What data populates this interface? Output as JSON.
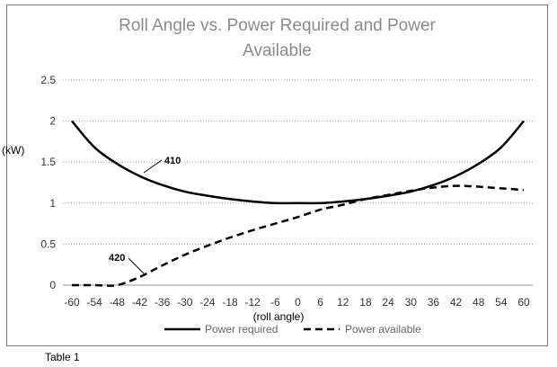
{
  "chart_data": {
    "type": "line",
    "title_lines": [
      "Roll Angle vs. Power Required and Power",
      "Available"
    ],
    "xlabel": "(roll angle)",
    "ylabel": "(kW)",
    "caption": "Table 1",
    "x_tick_labels": [
      "-60",
      "-54",
      "-48",
      "-42",
      "-36",
      "-30",
      "-24",
      "-18",
      "-12",
      "-6",
      "0",
      "6",
      "12",
      "18",
      "24",
      "30",
      "36",
      "42",
      "48",
      "54",
      "60"
    ],
    "y_tick_labels": [
      "0",
      "0.5",
      "1",
      "1.5",
      "2",
      "2.5"
    ],
    "xlim": [
      -60,
      60
    ],
    "ylim": [
      0,
      2.5
    ],
    "grid": "horizontal dotted",
    "legend_position": "bottom",
    "series": [
      {
        "name": "Power required",
        "annotation": "410",
        "style": "solid",
        "color": "#000000",
        "x": [
          -60,
          -54,
          -48,
          -42,
          -36,
          -30,
          -24,
          -18,
          -12,
          -6,
          0,
          6,
          12,
          18,
          24,
          30,
          36,
          42,
          48,
          54,
          60
        ],
        "values": [
          2.0,
          1.68,
          1.48,
          1.33,
          1.22,
          1.14,
          1.09,
          1.05,
          1.02,
          1.0,
          1.0,
          1.0,
          1.02,
          1.05,
          1.09,
          1.14,
          1.22,
          1.33,
          1.48,
          1.68,
          2.0
        ]
      },
      {
        "name": "Power available",
        "annotation": "420",
        "style": "dashed",
        "color": "#000000",
        "x": [
          -60,
          -54,
          -48,
          -42,
          -36,
          -30,
          -24,
          -18,
          -12,
          -6,
          0,
          6,
          12,
          18,
          24,
          30,
          36,
          42,
          48,
          54,
          60
        ],
        "values": [
          0,
          0,
          0,
          0.1,
          0.24,
          0.37,
          0.48,
          0.58,
          0.67,
          0.75,
          0.83,
          0.92,
          0.98,
          1.05,
          1.1,
          1.15,
          1.19,
          1.21,
          1.2,
          1.18,
          1.16
        ]
      }
    ]
  }
}
